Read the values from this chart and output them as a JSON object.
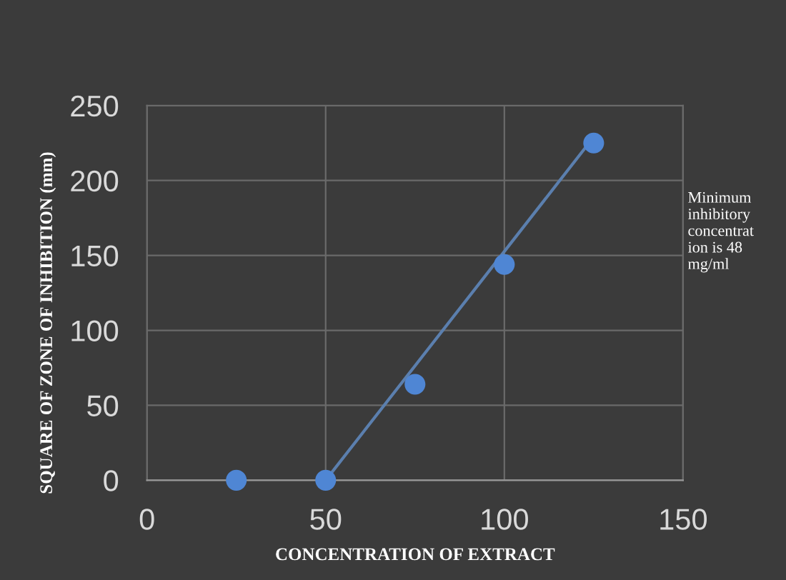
{
  "chart_data": {
    "type": "scatter",
    "xlabel": "CONCENTRATION OF EXTRACT",
    "ylabel": "SQUARE OF ZONE OF INHIBITION (mm)",
    "annotations": [
      "Minimum\ninhibitory\nconcentrat\nion is 48\nmg/ml"
    ],
    "series": [
      {
        "color": "#4f86d4",
        "x": [
          25,
          50,
          75,
          100,
          125
        ],
        "values": [
          0,
          0,
          64,
          144,
          225
        ],
        "marker": "circle"
      },
      {
        "type": "line",
        "color": "#5b7fae",
        "x": [
          50,
          125
        ],
        "values": [
          0,
          229
        ],
        "marker": "none",
        "line_style": "solid"
      }
    ],
    "xlim": [
      0,
      150
    ],
    "xticks": [
      0,
      50,
      100,
      150
    ],
    "ylim": [
      0,
      250
    ],
    "yticks": [
      0,
      50,
      100,
      150,
      200,
      250
    ],
    "grid": true,
    "legend": false
  }
}
